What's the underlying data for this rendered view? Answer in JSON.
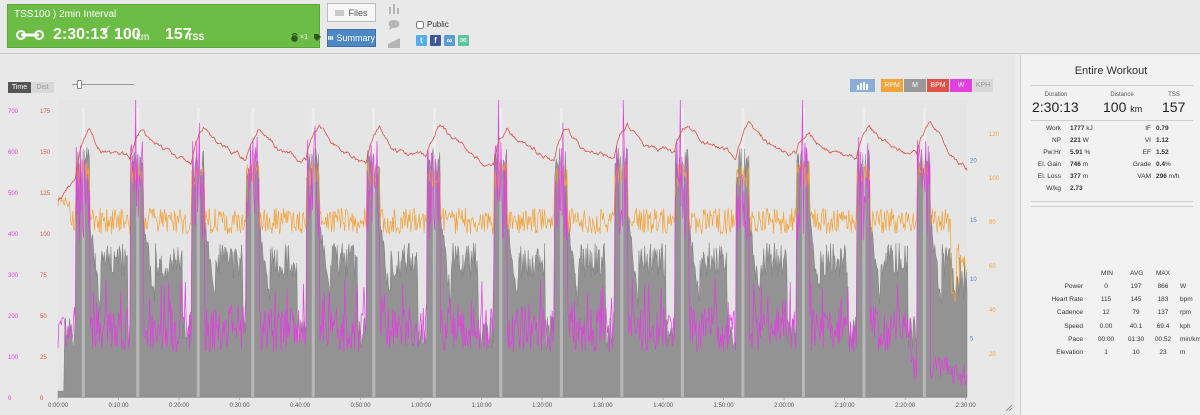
{
  "workout": {
    "title": "TSS100 ) 2min Interval",
    "duration": "2:30:13",
    "distance": "100",
    "distance_unit": "km",
    "tss": "157",
    "tss_unit": "TSS",
    "equipment_count": "×1"
  },
  "toolbar": {
    "files_label": "Files",
    "summary_label": "Summary"
  },
  "share": {
    "public_label": "Public",
    "public_checked": false
  },
  "chart_controls": {
    "time_label": "Time",
    "dist_label": "Dist",
    "metric_toggles": [
      {
        "label": "RPM",
        "color": "#f2a33a"
      },
      {
        "label": "M",
        "color": "#999999"
      },
      {
        "label": "BPM",
        "color": "#e05247"
      },
      {
        "label": "W",
        "color": "#e040e0"
      },
      {
        "label": "KPH",
        "color": "#d8d8d8"
      }
    ]
  },
  "chart_data": {
    "type": "line",
    "x_type": "time",
    "x_ticks": [
      "0:00:00",
      "0:10:00",
      "0:20:00",
      "0:30:00",
      "0:40:00",
      "0:50:00",
      "1:00:00",
      "1:10:00",
      "1:20:00",
      "1:30:00",
      "1:40:00",
      "1:50:00",
      "2:00:00",
      "2:10:00",
      "2:20:00",
      "2:30:00"
    ],
    "y_axes": {
      "power": {
        "ticks": [
          "0",
          "100",
          "200",
          "300",
          "400",
          "500",
          "600",
          "700"
        ],
        "color": "#e040e0",
        "range": [
          0,
          725
        ]
      },
      "heart_rate": {
        "ticks": [
          "0",
          "25",
          "50",
          "75",
          "100",
          "125",
          "150",
          "175"
        ],
        "color": "#e05247",
        "range": [
          0,
          181
        ]
      },
      "speed": {
        "ticks": [
          "5",
          "10",
          "15",
          "20"
        ],
        "color": "#4a7fc1",
        "range": [
          0,
          25
        ]
      },
      "cadence": {
        "ticks": [
          "20",
          "40",
          "60",
          "80",
          "100",
          "120"
        ],
        "color": "#f2a33a",
        "range": [
          0,
          135
        ]
      }
    },
    "intervals": {
      "count": 15,
      "description": "2 min hard interval every 10 min after a warmup",
      "start_minutes": [
        3,
        12,
        22,
        31,
        41,
        51,
        61,
        72,
        82,
        92,
        102,
        112,
        122,
        132,
        142
      ],
      "interval_power_w": 560,
      "recovery_power_w": 140
    },
    "series": [
      {
        "name": "Power",
        "color": "#e040e0",
        "avg": 197,
        "max": 866
      },
      {
        "name": "Heart Rate",
        "color": "#e05247",
        "avg": 145,
        "max": 183
      },
      {
        "name": "Cadence",
        "color": "#f2a33a",
        "avg": 79,
        "max": 137
      },
      {
        "name": "Elevation",
        "color": "#8a8a8a",
        "avg": 10,
        "max": 23
      }
    ]
  },
  "summary": {
    "title": "Entire Workout",
    "duration_label": "Duration",
    "duration": "2:30:13",
    "distance_label": "Distance",
    "distance": "100",
    "distance_unit": "km",
    "tss_label": "TSS",
    "tss": "157",
    "stats_left": [
      {
        "label": "Work",
        "value": "1777",
        "unit": "kJ"
      },
      {
        "label": "NP",
        "value": "221",
        "unit": "W"
      },
      {
        "label": "Pw:Hr",
        "value": "5.91",
        "unit": "%"
      },
      {
        "label": "El. Gain",
        "value": "746",
        "unit": "m"
      },
      {
        "label": "El. Loss",
        "value": "377",
        "unit": "m"
      },
      {
        "label": "W/kg",
        "value": "2.73",
        "unit": ""
      }
    ],
    "stats_right": [
      {
        "label": "IF",
        "value": "0.79",
        "unit": ""
      },
      {
        "label": "VI",
        "value": "1.12",
        "unit": ""
      },
      {
        "label": "EF",
        "value": "1.52",
        "unit": ""
      },
      {
        "label": "Grade",
        "value": "0.4",
        "unit": "%"
      },
      {
        "label": "VAM",
        "value": "296",
        "unit": "m/h"
      }
    ],
    "minmax_headers": {
      "min": "MIN",
      "avg": "AVG",
      "max": "MAX"
    },
    "minmax": [
      {
        "label": "Power",
        "min": "0",
        "avg": "197",
        "max": "866",
        "unit": "W"
      },
      {
        "label": "Heart Rate",
        "min": "115",
        "avg": "145",
        "max": "183",
        "unit": "bpm"
      },
      {
        "label": "Cadence",
        "min": "12",
        "avg": "79",
        "max": "137",
        "unit": "rpm"
      },
      {
        "label": "Speed",
        "min": "0.00",
        "avg": "40.1",
        "max": "69.4",
        "unit": "kph"
      },
      {
        "label": "Pace",
        "min": "00:00",
        "avg": "01:30",
        "max": "00:52",
        "unit": "min/km"
      },
      {
        "label": "Elevation",
        "min": "1",
        "avg": "10",
        "max": "23",
        "unit": "m"
      }
    ]
  }
}
